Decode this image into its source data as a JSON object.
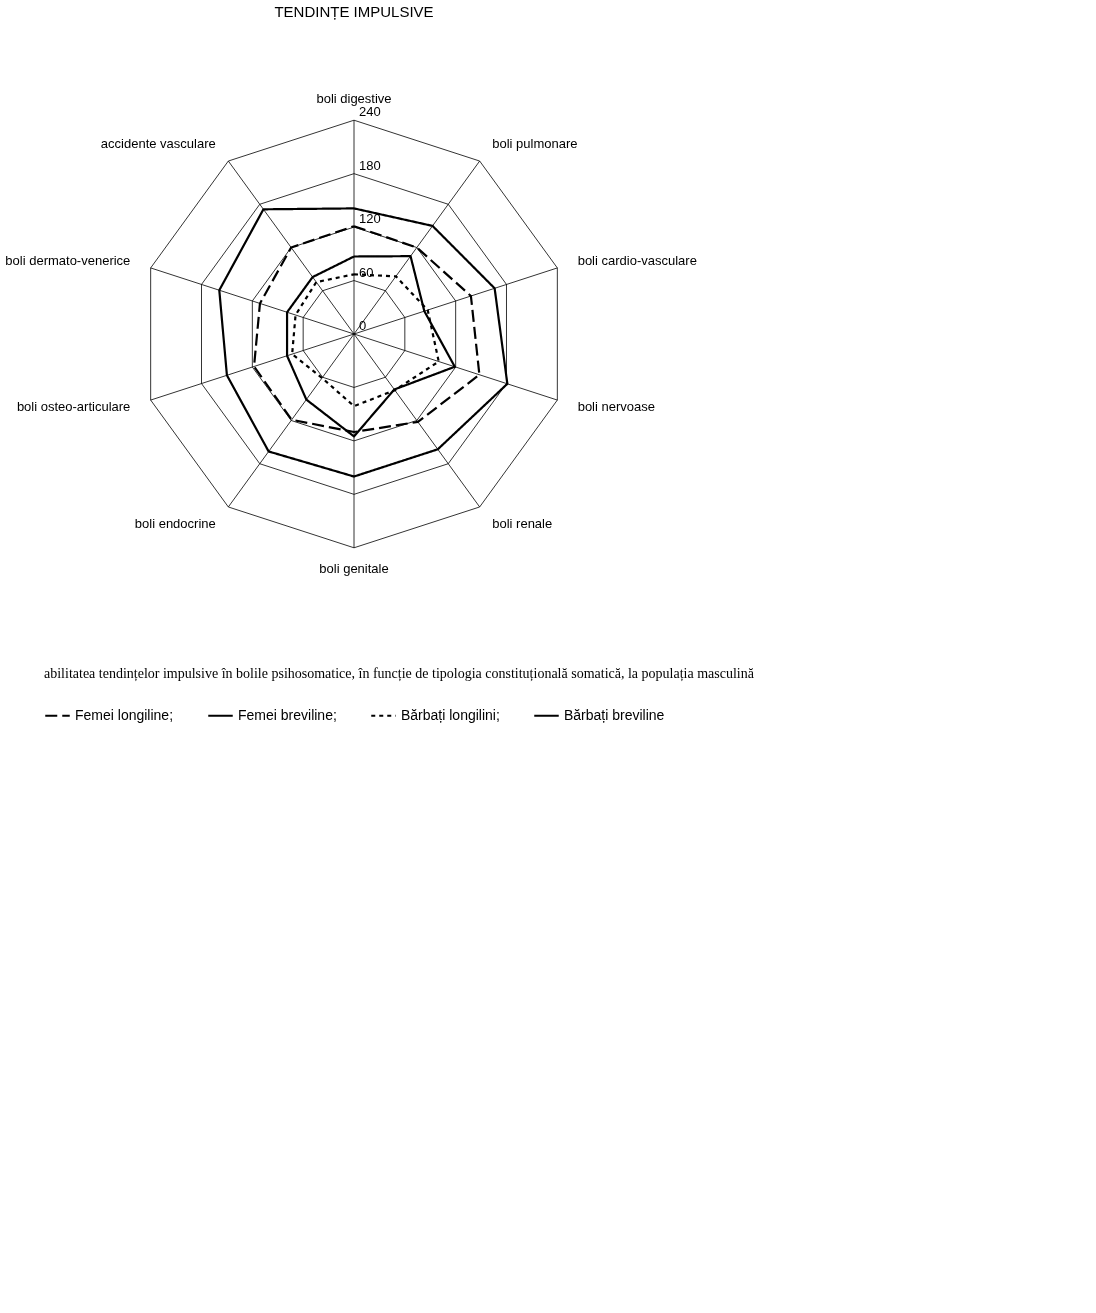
{
  "chart_data": {
    "type": "radar",
    "title": "TENDINȚE IMPULSIVE",
    "categories": [
      "boli digestive",
      "boli pulmonare",
      "boli cardio-vasculare",
      "boli nervoase",
      "boli renale",
      "boli genitale",
      "boli endocrine",
      "boli osteo-articulare",
      "boli dermato-venerice",
      "accidente vasculare"
    ],
    "ylim": [
      0,
      240
    ],
    "yticks": [
      0,
      60,
      120,
      180,
      240
    ],
    "grid": true,
    "legend": "bottom",
    "series": [
      {
        "name": "Femei longiline;",
        "color": "#000000",
        "line_style": "dashed",
        "values": [
          121,
          120,
          138,
          148,
          122,
          110,
          119,
          118,
          111,
          120
        ]
      },
      {
        "name": "Femei breviline;",
        "color": "#000000",
        "line_style": "solid",
        "values": [
          141,
          150,
          166,
          181,
          160,
          160,
          163,
          150,
          159,
          173
        ]
      },
      {
        "name": "Bărbați longilini;",
        "color": "#000000",
        "line_style": "dotted",
        "values": [
          67,
          80,
          87,
          100,
          78,
          81,
          61,
          73,
          69,
          72
        ]
      },
      {
        "name": "Bărbați breviline",
        "color": "#000000",
        "line_style": "solid",
        "values": [
          87,
          108,
          83,
          119,
          77,
          115,
          91,
          79,
          79,
          79
        ]
      }
    ],
    "annotations": [
      "abilitatea tendințelor impulsive în bolile psihosomatice, în funcție de tipologia constituțională somatică, la populația masculină"
    ]
  }
}
